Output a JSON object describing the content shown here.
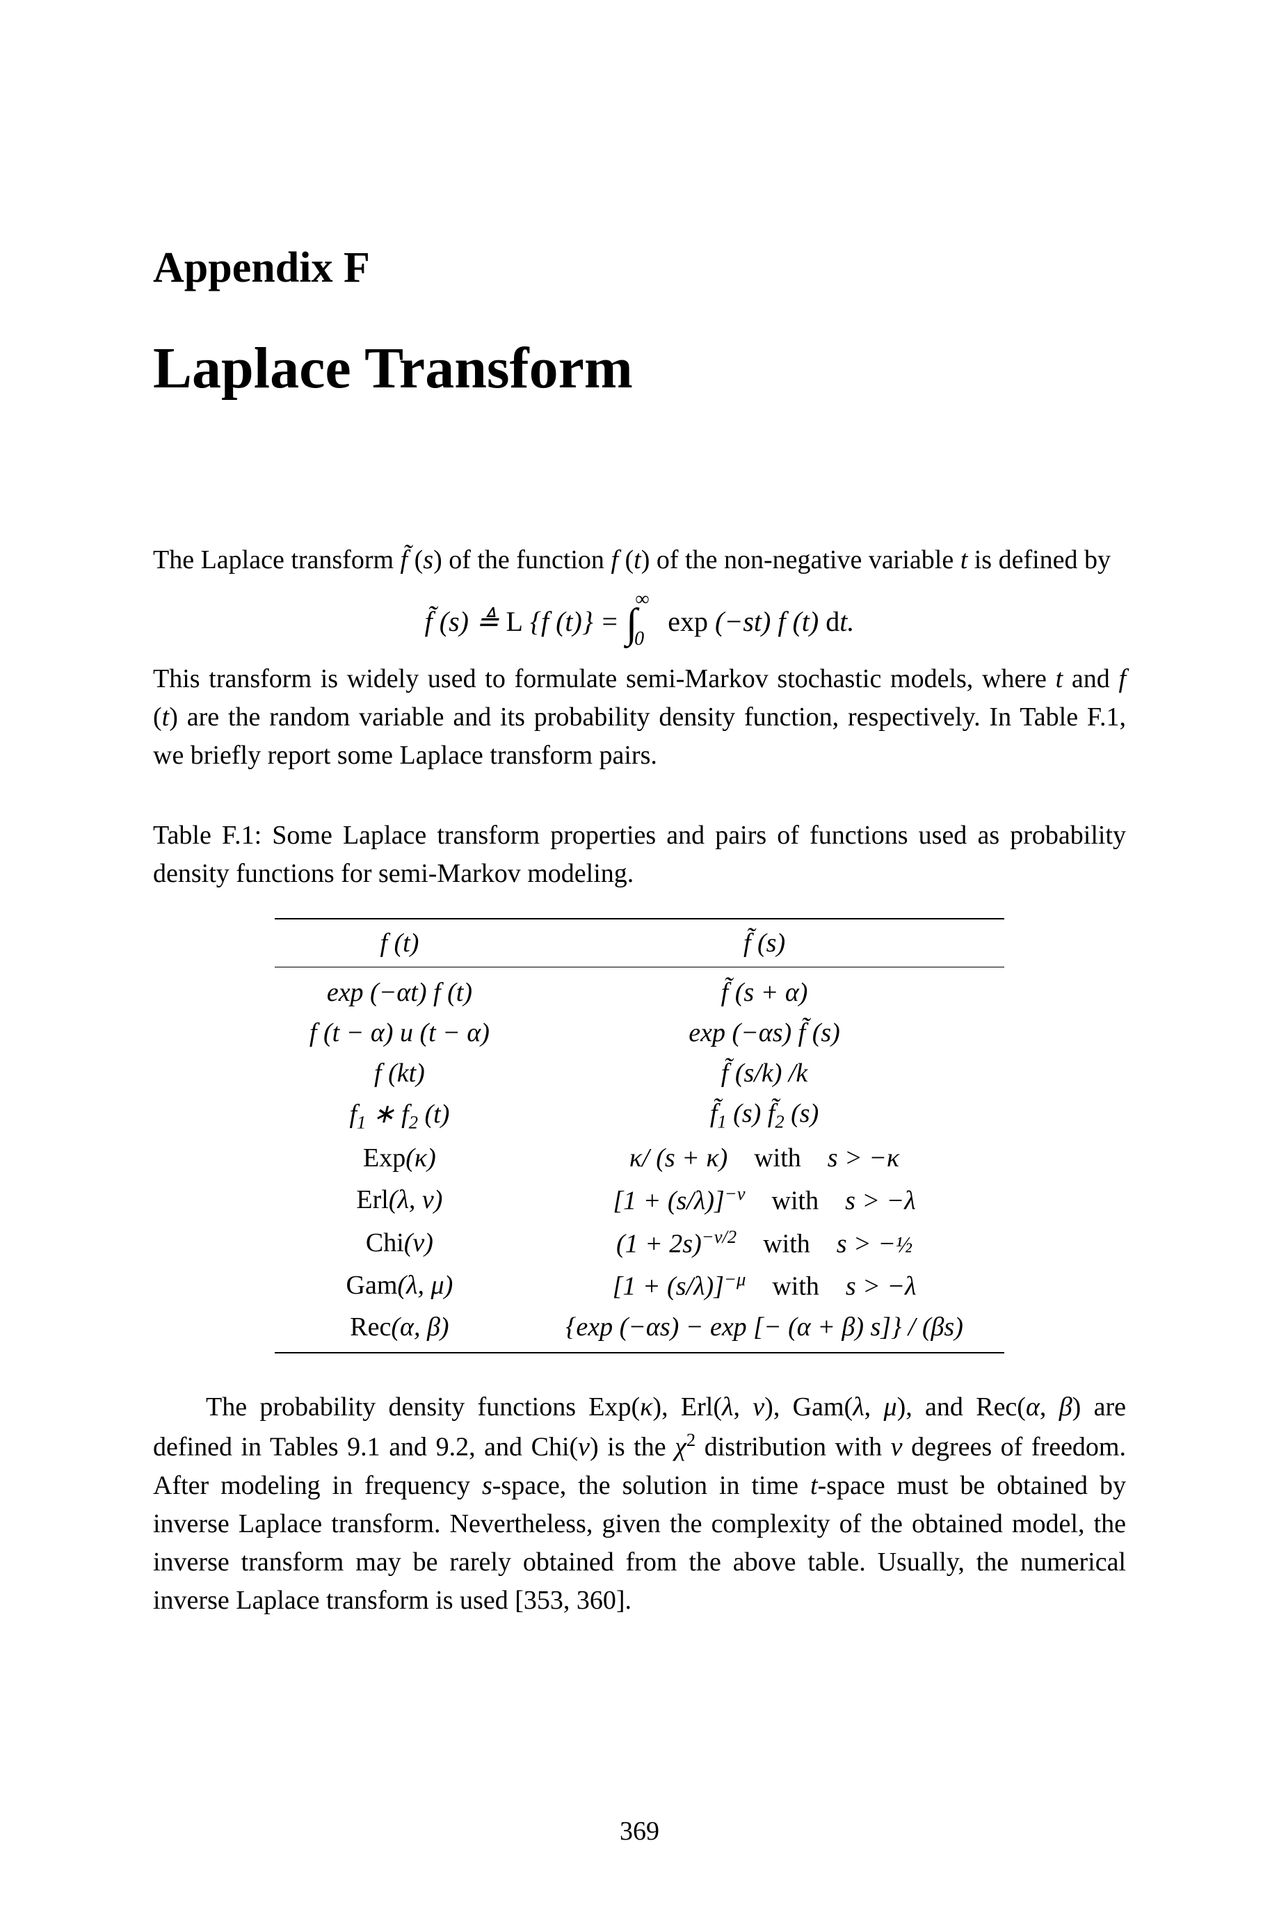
{
  "appendix_label": "Appendix F",
  "chapter_title": "Laplace Transform",
  "intro_text_1": "The Laplace transform f̃ (s) of the function f (t) of the non-negative variable t is defined by",
  "equation_main": "f̃ (s) ≜ L { f (t)} = ∫₀^∞ exp (−st) f (t) dt.",
  "intro_text_2": "This transform is widely used to formulate semi-Markov stochastic models, where t and f (t) are the random variable and its probability density function, respectively. In Table F.1, we briefly report some Laplace transform pairs.",
  "table_caption": "Table F.1: Some Laplace transform properties and pairs of functions used as probability density functions for semi-Markov modeling.",
  "table": {
    "header_left": "f (t)",
    "header_right": "f̃ (s)",
    "rows": [
      {
        "left": "exp (−αt) f (t)",
        "right": "f̃ (s + α)"
      },
      {
        "left": "f (t − α) u (t − α)",
        "right": "exp (−αs) f̃ (s)"
      },
      {
        "left": "f (kt)",
        "right": "f̃ (s/k) /k"
      },
      {
        "left": "f₁ ∗ f₂ (t)",
        "right": "f̃₁ (s) f̃₂ (s)"
      },
      {
        "left": "Exp(κ)",
        "right": "κ/ (s + κ) with s > −κ"
      },
      {
        "left": "Erl(λ, ν)",
        "right": "[1 + (s/λ)]⁻ᵛ with s > −λ"
      },
      {
        "left": "Chi(ν)",
        "right": "(1 + 2s)⁻ᵛ/² with s > −½"
      },
      {
        "left": "Gam(λ, μ)",
        "right": "[1 + (s/λ)]⁻ᵘ with s > −λ"
      },
      {
        "left": "Rec(α, β)",
        "right": "{exp (−αs) − exp [− (α + β) s]} / (βs)"
      }
    ]
  },
  "closing_text": "The probability density functions Exp(κ), Erl(λ, ν), Gam(λ, μ), and Rec(α, β) are defined in Tables 9.1 and 9.2, and Chi(ν) is the χ² distribution with ν degrees of freedom. After modeling in frequency s-space, the solution in time t-space must be obtained by inverse Laplace transform. Nevertheless, given the complexity of the obtained model, the inverse transform may be rarely obtained from the above table. Usually, the numerical inverse Laplace transform is used [353, 360].",
  "page_number": "369",
  "styling": {
    "background_color": "#ffffff",
    "text_color": "#000000",
    "body_fontsize": 38,
    "title_fontsize": 84,
    "appendix_fontsize": 62,
    "pagenum_fontsize": 38,
    "table_border_color": "#000000",
    "font_family": "Computer Modern"
  }
}
